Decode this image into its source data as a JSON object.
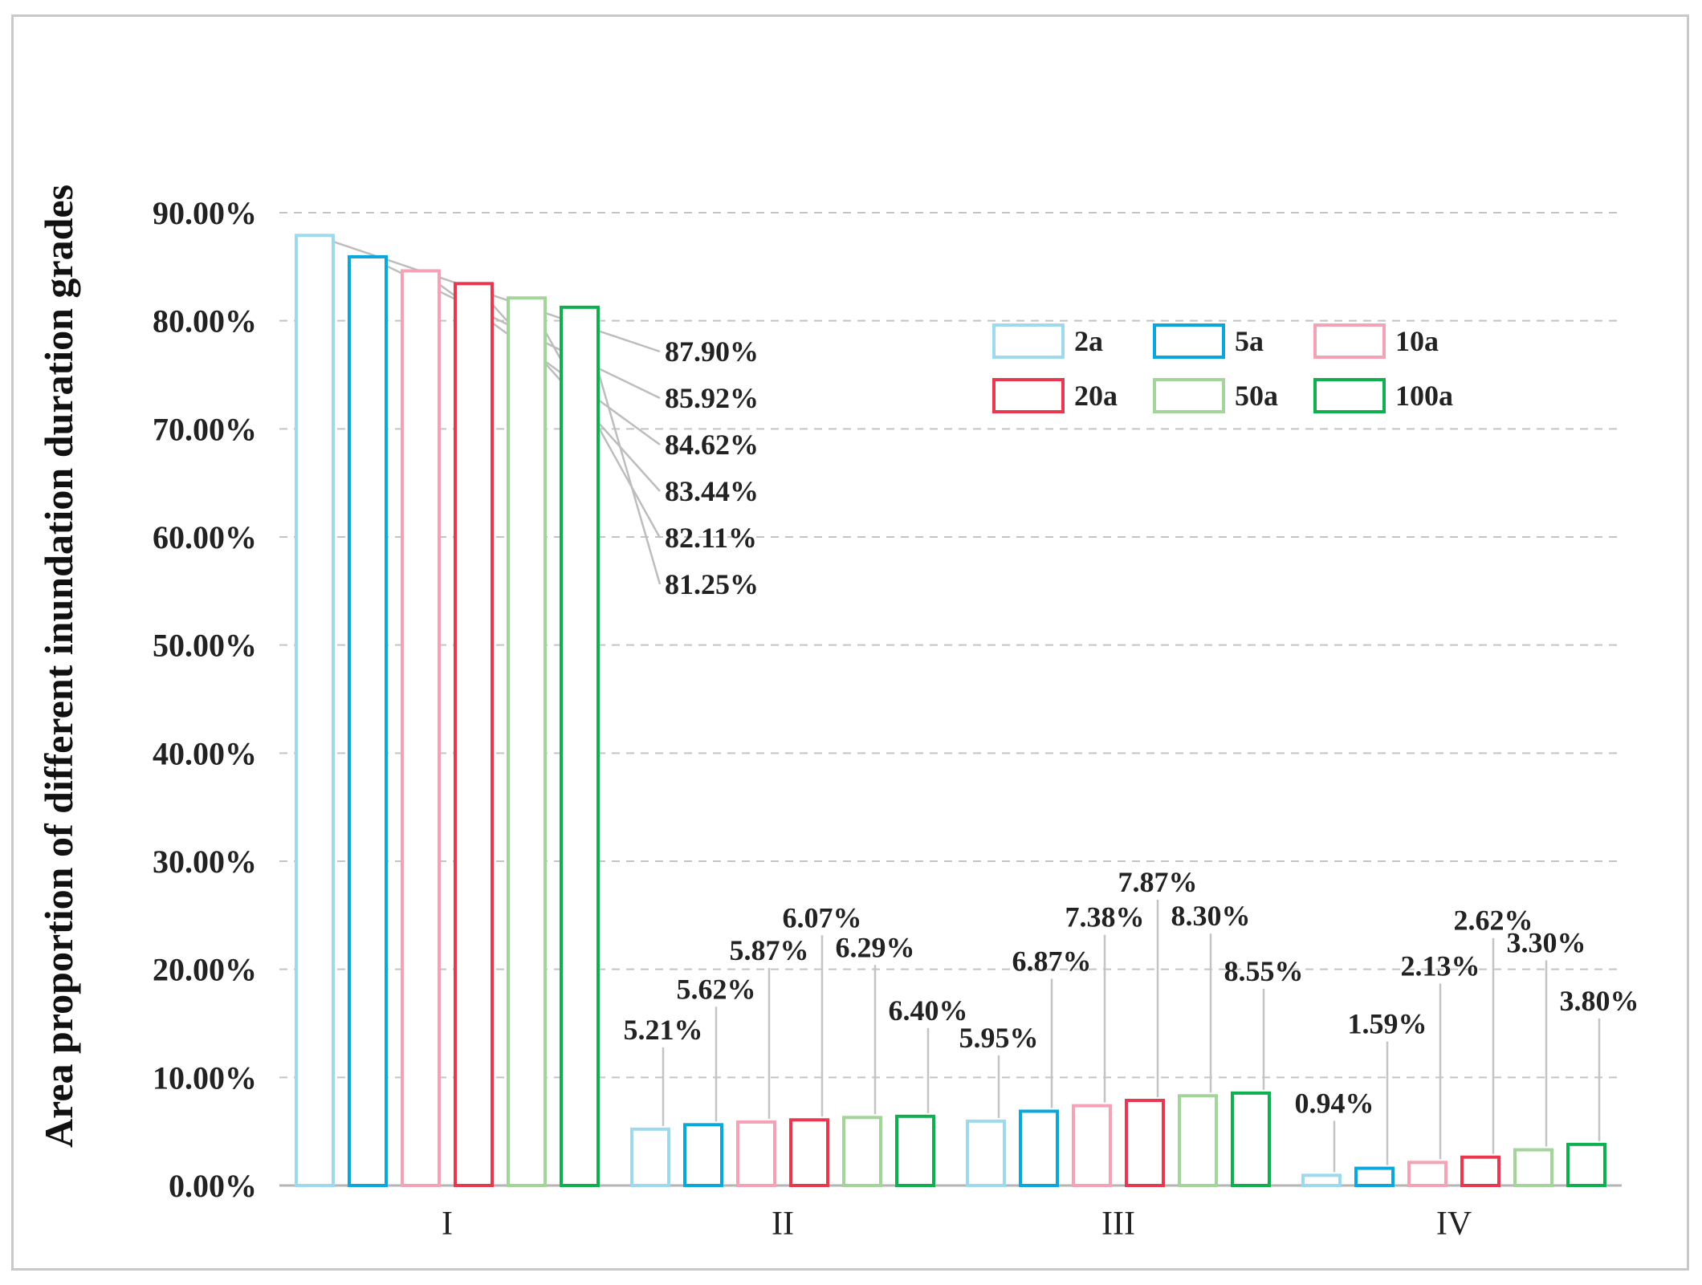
{
  "chart_data": {
    "type": "bar",
    "title": "",
    "xlabel": "",
    "ylabel": "Area proportion of different inundation duration grades",
    "ylim": [
      0,
      90
    ],
    "yticks": [
      "0.00%",
      "10.00%",
      "20.00%",
      "30.00%",
      "40.00%",
      "50.00%",
      "60.00%",
      "70.00%",
      "80.00%",
      "90.00%"
    ],
    "grid": true,
    "legend_position": "top-right",
    "categories": [
      "I",
      "II",
      "III",
      "IV"
    ],
    "series": [
      {
        "name": "2a",
        "color": "#9ed9ee",
        "values": [
          87.9,
          5.21,
          5.95,
          0.94
        ],
        "labels": [
          "87.90%",
          "5.21%",
          "5.95%",
          "0.94%"
        ]
      },
      {
        "name": "5a",
        "color": "#0aa7dc",
        "values": [
          85.92,
          5.62,
          6.87,
          1.59
        ],
        "labels": [
          "85.92%",
          "5.62%",
          "6.87%",
          "1.59%"
        ]
      },
      {
        "name": "10a",
        "color": "#f4a3b6",
        "values": [
          84.62,
          5.87,
          7.38,
          2.13
        ],
        "labels": [
          "84.62%",
          "5.87%",
          "7.38%",
          "2.13%"
        ]
      },
      {
        "name": "20a",
        "color": "#e8384f",
        "values": [
          83.44,
          6.07,
          7.87,
          2.62
        ],
        "labels": [
          "83.44%",
          "6.07%",
          "7.87%",
          "2.62%"
        ]
      },
      {
        "name": "50a",
        "color": "#a3d49a",
        "values": [
          82.11,
          6.29,
          8.3,
          3.3
        ],
        "labels": [
          "82.11%",
          "6.29%",
          "8.30%",
          "3.30%"
        ]
      },
      {
        "name": "100a",
        "color": "#0fae4f",
        "values": [
          81.25,
          6.4,
          8.55,
          3.8
        ],
        "labels": [
          "81.25%",
          "6.40%",
          "8.55%",
          "3.80%"
        ]
      }
    ]
  }
}
